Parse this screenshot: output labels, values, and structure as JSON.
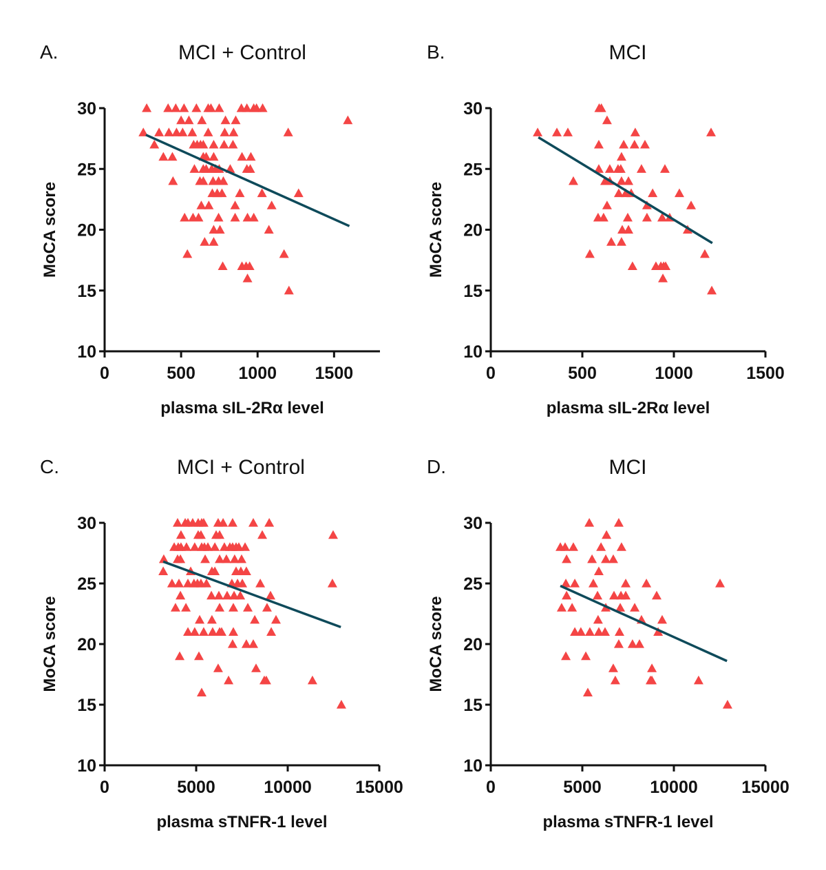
{
  "colors": {
    "marker": "#F44545",
    "fit_line": "#0E4A5A",
    "axis": "#111111"
  },
  "chart_data": [
    {
      "id": "A",
      "letter": "A.",
      "type": "scatter",
      "title": "MCI + Control",
      "xlabel": "plasma sIL-2Rα level",
      "ylabel": "MoCA score",
      "xlim": [
        0,
        1800
      ],
      "ylim": [
        10,
        30
      ],
      "xticks": [
        0,
        500,
        1000,
        1500
      ],
      "yticks": [
        10,
        15,
        20,
        25,
        30
      ],
      "marker": "triangle",
      "points": [
        [
          275,
          30
        ],
        [
          415,
          30
        ],
        [
          465,
          30
        ],
        [
          519,
          30
        ],
        [
          600,
          30
        ],
        [
          677,
          30
        ],
        [
          695,
          30
        ],
        [
          749,
          30
        ],
        [
          894,
          30
        ],
        [
          930,
          30
        ],
        [
          975,
          30
        ],
        [
          993,
          30
        ],
        [
          1033,
          30
        ],
        [
          500,
          29
        ],
        [
          551,
          29
        ],
        [
          636,
          29
        ],
        [
          790,
          29
        ],
        [
          857,
          29
        ],
        [
          1590,
          29
        ],
        [
          253,
          28
        ],
        [
          356,
          28
        ],
        [
          420,
          28
        ],
        [
          470,
          28
        ],
        [
          510,
          28
        ],
        [
          573,
          28
        ],
        [
          677,
          28
        ],
        [
          785,
          28
        ],
        [
          843,
          28
        ],
        [
          1200,
          28
        ],
        [
          325,
          27
        ],
        [
          582,
          27
        ],
        [
          605,
          27
        ],
        [
          627,
          27
        ],
        [
          645,
          27
        ],
        [
          713,
          27
        ],
        [
          781,
          27
        ],
        [
          839,
          27
        ],
        [
          384,
          26
        ],
        [
          443,
          26
        ],
        [
          645,
          26
        ],
        [
          664,
          26
        ],
        [
          713,
          26
        ],
        [
          898,
          26
        ],
        [
          956,
          26
        ],
        [
          587,
          25
        ],
        [
          645,
          25
        ],
        [
          664,
          25
        ],
        [
          700,
          25
        ],
        [
          727,
          25
        ],
        [
          749,
          25
        ],
        [
          821,
          25
        ],
        [
          930,
          25
        ],
        [
          952,
          25
        ],
        [
          447,
          24
        ],
        [
          623,
          24
        ],
        [
          645,
          24
        ],
        [
          709,
          24
        ],
        [
          745,
          24
        ],
        [
          776,
          24
        ],
        [
          704,
          23
        ],
        [
          736,
          23
        ],
        [
          767,
          23
        ],
        [
          884,
          23
        ],
        [
          1029,
          23
        ],
        [
          1268,
          23
        ],
        [
          632,
          22
        ],
        [
          681,
          22
        ],
        [
          853,
          22
        ],
        [
          1092,
          22
        ],
        [
          523,
          21
        ],
        [
          578,
          21
        ],
        [
          614,
          21
        ],
        [
          745,
          21
        ],
        [
          853,
          21
        ],
        [
          934,
          21
        ],
        [
          975,
          21
        ],
        [
          713,
          20
        ],
        [
          754,
          20
        ],
        [
          1074,
          20
        ],
        [
          654,
          19
        ],
        [
          713,
          19
        ],
        [
          541,
          18
        ],
        [
          1173,
          18
        ],
        [
          772,
          17
        ],
        [
          898,
          17
        ],
        [
          925,
          17
        ],
        [
          948,
          17
        ],
        [
          934,
          16
        ],
        [
          1205,
          15
        ]
      ],
      "fit_line": {
        "x": [
          270,
          1600
        ],
        "y": [
          27.8,
          20.3
        ]
      }
    },
    {
      "id": "B",
      "letter": "B.",
      "type": "scatter",
      "title": "MCI",
      "xlabel": "plasma sIL-2Rα level",
      "ylabel": "MoCA score",
      "xlim": [
        0,
        1500
      ],
      "ylim": [
        10,
        30
      ],
      "xticks": [
        0,
        500,
        1000,
        1500
      ],
      "yticks": [
        10,
        15,
        20,
        25,
        30
      ],
      "marker": "triangle",
      "points": [
        [
          592,
          30
        ],
        [
          604,
          30
        ],
        [
          635,
          29
        ],
        [
          256,
          28
        ],
        [
          361,
          28
        ],
        [
          421,
          28
        ],
        [
          789,
          28
        ],
        [
          1203,
          28
        ],
        [
          590,
          27
        ],
        [
          726,
          27
        ],
        [
          785,
          27
        ],
        [
          842,
          27
        ],
        [
          714,
          26
        ],
        [
          590,
          25
        ],
        [
          650,
          25
        ],
        [
          695,
          25
        ],
        [
          710,
          25
        ],
        [
          823,
          25
        ],
        [
          951,
          25
        ],
        [
          451,
          24
        ],
        [
          624,
          24
        ],
        [
          650,
          24
        ],
        [
          714,
          24
        ],
        [
          752,
          24
        ],
        [
          699,
          23
        ],
        [
          737,
          23
        ],
        [
          767,
          23
        ],
        [
          884,
          23
        ],
        [
          1030,
          23
        ],
        [
          635,
          22
        ],
        [
          853,
          22
        ],
        [
          1094,
          22
        ],
        [
          586,
          21
        ],
        [
          616,
          21
        ],
        [
          748,
          21
        ],
        [
          853,
          21
        ],
        [
          936,
          21
        ],
        [
          977,
          21
        ],
        [
          718,
          20
        ],
        [
          752,
          20
        ],
        [
          1075,
          20
        ],
        [
          658,
          19
        ],
        [
          714,
          19
        ],
        [
          541,
          18
        ],
        [
          1169,
          18
        ],
        [
          774,
          17
        ],
        [
          902,
          17
        ],
        [
          929,
          17
        ],
        [
          944,
          17
        ],
        [
          955,
          17
        ],
        [
          940,
          16
        ],
        [
          1207,
          15
        ]
      ],
      "fit_line": {
        "x": [
          260,
          1210
        ],
        "y": [
          27.6,
          18.9
        ]
      }
    },
    {
      "id": "C",
      "letter": "C.",
      "type": "scatter",
      "title": "MCI + Control",
      "xlabel": "plasma sTNFR-1 level",
      "ylabel": "MoCA score",
      "xlim": [
        0,
        15000
      ],
      "ylim": [
        10,
        30
      ],
      "xticks": [
        0,
        5000,
        10000,
        15000
      ],
      "yticks": [
        10,
        15,
        20,
        25,
        30
      ],
      "marker": "triangle",
      "points": [
        [
          3985,
          30
        ],
        [
          4400,
          30
        ],
        [
          4550,
          30
        ],
        [
          4810,
          30
        ],
        [
          5110,
          30
        ],
        [
          5300,
          30
        ],
        [
          5410,
          30
        ],
        [
          6200,
          30
        ],
        [
          6470,
          30
        ],
        [
          6990,
          30
        ],
        [
          8120,
          30
        ],
        [
          8990,
          30
        ],
        [
          4170,
          29
        ],
        [
          5110,
          29
        ],
        [
          5260,
          29
        ],
        [
          6090,
          29
        ],
        [
          6280,
          29
        ],
        [
          8610,
          29
        ],
        [
          12480,
          29
        ],
        [
          3800,
          28
        ],
        [
          4020,
          28
        ],
        [
          4170,
          28
        ],
        [
          4470,
          28
        ],
        [
          4920,
          28
        ],
        [
          5300,
          28
        ],
        [
          5450,
          28
        ],
        [
          5640,
          28
        ],
        [
          6020,
          28
        ],
        [
          6540,
          28
        ],
        [
          6840,
          28
        ],
        [
          6990,
          28
        ],
        [
          7180,
          28
        ],
        [
          7330,
          28
        ],
        [
          7670,
          28
        ],
        [
          3230,
          27
        ],
        [
          3985,
          27
        ],
        [
          4140,
          27
        ],
        [
          5490,
          27
        ],
        [
          6280,
          27
        ],
        [
          6650,
          27
        ],
        [
          7100,
          27
        ],
        [
          7480,
          27
        ],
        [
          3200,
          26
        ],
        [
          4700,
          26
        ],
        [
          5860,
          26
        ],
        [
          6020,
          26
        ],
        [
          7180,
          26
        ],
        [
          7440,
          26
        ],
        [
          7740,
          26
        ],
        [
          3680,
          25
        ],
        [
          4060,
          25
        ],
        [
          4550,
          25
        ],
        [
          4880,
          25
        ],
        [
          5070,
          25
        ],
        [
          5260,
          25
        ],
        [
          5560,
          25
        ],
        [
          6950,
          25
        ],
        [
          7260,
          25
        ],
        [
          7520,
          25
        ],
        [
          8500,
          25
        ],
        [
          12440,
          25
        ],
        [
          4140,
          24
        ],
        [
          5830,
          24
        ],
        [
          6240,
          24
        ],
        [
          6690,
          24
        ],
        [
          7070,
          24
        ],
        [
          7410,
          24
        ],
        [
          9060,
          24
        ],
        [
          3870,
          23
        ],
        [
          4440,
          23
        ],
        [
          6280,
          23
        ],
        [
          7030,
          23
        ],
        [
          7820,
          23
        ],
        [
          8870,
          23
        ],
        [
          5190,
          22
        ],
        [
          5860,
          22
        ],
        [
          8200,
          22
        ],
        [
          9360,
          22
        ],
        [
          4550,
          21
        ],
        [
          4920,
          21
        ],
        [
          5410,
          21
        ],
        [
          5900,
          21
        ],
        [
          6280,
          21
        ],
        [
          6390,
          21
        ],
        [
          7030,
          21
        ],
        [
          9100,
          21
        ],
        [
          6990,
          20
        ],
        [
          7740,
          20
        ],
        [
          8120,
          20
        ],
        [
          4100,
          19
        ],
        [
          5150,
          19
        ],
        [
          6200,
          18
        ],
        [
          8270,
          18
        ],
        [
          6770,
          17
        ],
        [
          8720,
          17
        ],
        [
          8830,
          17
        ],
        [
          11350,
          17
        ],
        [
          5300,
          16
        ],
        [
          12930,
          15
        ]
      ],
      "fit_line": {
        "x": [
          3200,
          12900
        ],
        "y": [
          26.8,
          21.4
        ]
      }
    },
    {
      "id": "D",
      "letter": "D.",
      "type": "scatter",
      "title": "MCI",
      "xlabel": "plasma sTNFR-1 level",
      "ylabel": "MoCA score",
      "xlim": [
        0,
        15000
      ],
      "ylim": [
        10,
        30
      ],
      "xticks": [
        0,
        5000,
        10000,
        15000
      ],
      "yticks": [
        10,
        15,
        20,
        25,
        30
      ],
      "marker": "triangle",
      "points": [
        [
          5380,
          30
        ],
        [
          6990,
          30
        ],
        [
          6320,
          29
        ],
        [
          3800,
          28
        ],
        [
          4060,
          28
        ],
        [
          4510,
          28
        ],
        [
          6020,
          28
        ],
        [
          7140,
          28
        ],
        [
          4140,
          27
        ],
        [
          5530,
          27
        ],
        [
          6280,
          27
        ],
        [
          6690,
          27
        ],
        [
          5900,
          26
        ],
        [
          4100,
          25
        ],
        [
          4590,
          25
        ],
        [
          5600,
          25
        ],
        [
          7370,
          25
        ],
        [
          8500,
          25
        ],
        [
          12520,
          25
        ],
        [
          4140,
          24
        ],
        [
          5830,
          24
        ],
        [
          6730,
          24
        ],
        [
          7110,
          24
        ],
        [
          7370,
          24
        ],
        [
          9060,
          24
        ],
        [
          3870,
          23
        ],
        [
          4440,
          23
        ],
        [
          6280,
          23
        ],
        [
          7070,
          23
        ],
        [
          7860,
          23
        ],
        [
          5860,
          22
        ],
        [
          8230,
          22
        ],
        [
          9360,
          22
        ],
        [
          4590,
          21
        ],
        [
          4920,
          21
        ],
        [
          5410,
          21
        ],
        [
          5900,
          21
        ],
        [
          6240,
          21
        ],
        [
          7030,
          21
        ],
        [
          9140,
          21
        ],
        [
          6990,
          20
        ],
        [
          7740,
          20
        ],
        [
          8120,
          20
        ],
        [
          4100,
          19
        ],
        [
          5190,
          19
        ],
        [
          6690,
          18
        ],
        [
          8800,
          18
        ],
        [
          6800,
          17
        ],
        [
          8720,
          17
        ],
        [
          8800,
          17
        ],
        [
          11350,
          17
        ],
        [
          5300,
          16
        ],
        [
          12930,
          15
        ]
      ],
      "fit_line": {
        "x": [
          3800,
          12900
        ],
        "y": [
          24.8,
          18.6
        ]
      }
    }
  ]
}
